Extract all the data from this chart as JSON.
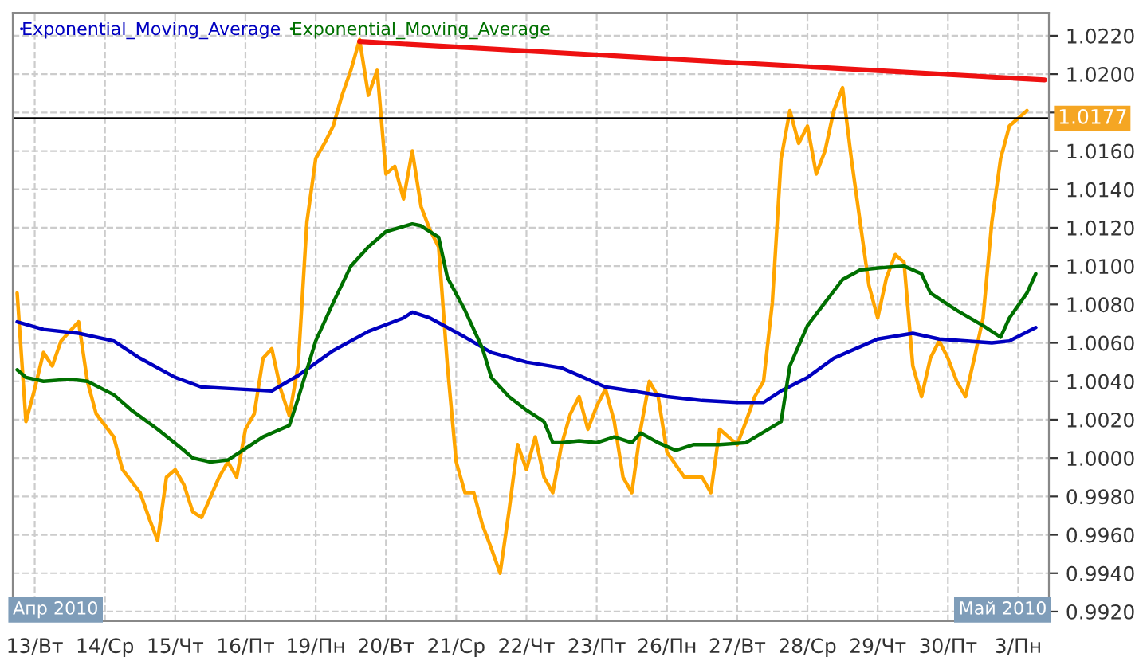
{
  "chart_data": {
    "type": "line",
    "categories": [
      null,
      null,
      "13/Вт",
      null,
      null,
      null,
      null,
      null,
      null,
      null,
      "14/Ср",
      null,
      null,
      null,
      null,
      null,
      null,
      null,
      "15/Чт",
      null,
      null,
      null,
      null,
      null,
      null,
      null,
      "16/Пт",
      null,
      null,
      null,
      null,
      null,
      null,
      null,
      "19/Пн",
      null,
      null,
      null,
      null,
      null,
      null,
      null,
      "20/Вт",
      null,
      null,
      null,
      null,
      null,
      null,
      null,
      "21/Ср",
      null,
      null,
      null,
      null,
      null,
      null,
      null,
      "22/Чт",
      null,
      null,
      null,
      null,
      null,
      null,
      null,
      "23/Пт",
      null,
      null,
      null,
      null,
      null,
      null,
      null,
      "26/Пн",
      null,
      null,
      null,
      null,
      null,
      null,
      null,
      "27/Вт",
      null,
      null,
      null,
      null,
      null,
      null,
      null,
      "28/Ср",
      null,
      null,
      null,
      null,
      null,
      null,
      null,
      "29/Чт",
      null,
      null,
      null,
      null,
      null,
      null,
      null,
      "30/Пт",
      null,
      null,
      null,
      null,
      null,
      null,
      null,
      "3/Пн",
      null,
      null,
      null
    ],
    "ylim": [
      0.9915,
      1.0232
    ],
    "yticks": [
      {
        "value": 0.992,
        "label": "0.9920"
      },
      {
        "value": 0.994,
        "label": "0.9940"
      },
      {
        "value": 0.996,
        "label": "0.9960"
      },
      {
        "value": 0.998,
        "label": "0.9980"
      },
      {
        "value": 1.0,
        "label": "1.0000"
      },
      {
        "value": 1.002,
        "label": "1.0020"
      },
      {
        "value": 1.004,
        "label": "1.0040"
      },
      {
        "value": 1.006,
        "label": "1.0060"
      },
      {
        "value": 1.008,
        "label": "1.0080"
      },
      {
        "value": 1.01,
        "label": "1.0100"
      },
      {
        "value": 1.012,
        "label": "1.0120"
      },
      {
        "value": 1.014,
        "label": "1.0140"
      },
      {
        "value": 1.016,
        "label": "1.0160"
      },
      {
        "value": 1.018,
        "label": null
      },
      {
        "value": 1.02,
        "label": "1.0200"
      },
      {
        "value": 1.022,
        "label": "1.0220"
      }
    ],
    "grid": true,
    "legend": "top left",
    "line_style": "solid",
    "ref_lines": [
      {
        "axis": "y",
        "value": 1.0177,
        "label": "1.0177",
        "color": "#000000"
      }
    ],
    "annotations": [
      "Апр 2010",
      "Май 2010"
    ],
    "series": [
      {
        "color": "#ffa500",
        "values": [
          1.0086,
          1.0019,
          1.0036,
          1.0055,
          1.0048,
          1.0061,
          1.0066,
          1.0071,
          1.004,
          1.0023,
          null,
          1.0011,
          0.9994,
          null,
          0.9982,
          0.9969,
          0.9957,
          0.999,
          0.9994,
          0.9986,
          0.9972,
          0.9969,
          null,
          0.999,
          0.9998,
          0.999,
          1.0015,
          1.0023,
          1.0052,
          1.0057,
          1.0036,
          1.0022,
          1.0048,
          1.0123,
          1.0156,
          1.0164,
          1.0173,
          1.0189,
          1.0202,
          1.0218,
          1.0189,
          1.0202,
          1.0148,
          1.0152,
          1.0135,
          1.016,
          1.0131,
          1.0119,
          1.011,
          1.0048,
          0.9998,
          0.9982,
          0.9982,
          0.9965,
          0.9953,
          0.994,
          0.9972,
          1.0007,
          0.9994,
          1.0011,
          0.999,
          0.9982,
          1.0007,
          1.0023,
          1.0032,
          1.0015,
          1.0027,
          1.0036,
          1.0019,
          0.999,
          0.9982,
          1.0015,
          1.004,
          1.0032,
          1.0003,
          null,
          0.999,
          null,
          0.999,
          0.9982,
          1.0015,
          1.0011,
          1.0007,
          1.0019,
          1.0032,
          1.004,
          1.0081,
          1.0156,
          1.0181,
          1.0164,
          1.0173,
          1.0148,
          1.016,
          1.0181,
          1.0193,
          1.0156,
          1.0123,
          1.009,
          1.0073,
          1.0094,
          1.0106,
          1.0102,
          1.0048,
          1.0032,
          1.0052,
          1.0061,
          1.0052,
          1.004,
          1.0032,
          1.0052,
          1.0073,
          1.0123,
          1.0156,
          1.0173,
          1.0177,
          1.0181,
          null,
          null
        ]
      },
      {
        "name": "Exponential_Moving_Average",
        "color": "#0000c0",
        "values": [
          1.0071,
          null,
          null,
          1.0067,
          null,
          null,
          null,
          1.0065,
          null,
          null,
          null,
          1.0061,
          null,
          null,
          1.0052,
          null,
          null,
          null,
          1.0042,
          null,
          null,
          1.0037,
          null,
          null,
          null,
          1.0036,
          null,
          null,
          null,
          1.0035,
          null,
          null,
          1.0043,
          null,
          null,
          null,
          1.0056,
          null,
          null,
          null,
          1.0066,
          null,
          null,
          null,
          1.0073,
          1.0076,
          null,
          1.0073,
          null,
          null,
          null,
          1.0063,
          null,
          null,
          1.0055,
          null,
          null,
          null,
          1.005,
          null,
          null,
          null,
          1.0047,
          null,
          null,
          null,
          null,
          1.0037,
          null,
          null,
          1.0035,
          null,
          null,
          null,
          1.0032,
          null,
          null,
          null,
          1.003,
          null,
          null,
          null,
          1.0029,
          null,
          null,
          1.0029,
          null,
          1.0035,
          null,
          null,
          1.0042,
          null,
          null,
          1.0052,
          null,
          null,
          1.0058,
          null,
          1.0062,
          null,
          null,
          null,
          1.0065,
          null,
          null,
          1.0062,
          null,
          null,
          null,
          null,
          null,
          1.006,
          null,
          1.0061,
          null,
          null,
          1.0068,
          null
        ]
      },
      {
        "name": "Exponential_Moving_Average",
        "color": "#007000",
        "values": [
          1.0046,
          1.0042,
          null,
          1.004,
          null,
          null,
          1.0041,
          null,
          1.004,
          null,
          null,
          1.0033,
          null,
          1.0025,
          null,
          null,
          1.0015,
          null,
          null,
          1.0004,
          1.0,
          null,
          0.9998,
          null,
          0.9999,
          null,
          1.0005,
          null,
          1.0011,
          1.0013,
          null,
          1.0017,
          1.0031,
          null,
          1.0061,
          null,
          1.0081,
          null,
          1.01,
          null,
          1.011,
          null,
          1.0118,
          null,
          null,
          1.0122,
          1.0121,
          null,
          1.0115,
          1.0094,
          null,
          1.0077,
          null,
          1.0057,
          1.0042,
          null,
          1.0032,
          null,
          1.0025,
          null,
          1.0019,
          1.0008,
          1.0008,
          null,
          1.0009,
          null,
          1.0008,
          null,
          1.0011,
          null,
          1.0008,
          1.0013,
          null,
          1.0008,
          null,
          1.0004,
          null,
          1.0007,
          null,
          null,
          1.0007,
          null,
          null,
          1.0008,
          null,
          null,
          null,
          1.0019,
          1.0048,
          null,
          1.0069,
          null,
          1.0081,
          null,
          1.0093,
          null,
          1.0098,
          null,
          1.0099,
          null,
          null,
          1.01,
          null,
          1.0096,
          1.0086,
          null,
          null,
          1.0077,
          null,
          null,
          1.0069,
          null,
          1.0063,
          1.0073,
          null,
          1.0086,
          1.0096,
          null
        ]
      },
      {
        "color": "#ee1111",
        "values": [
          null,
          null,
          null,
          null,
          null,
          null,
          null,
          null,
          null,
          null,
          null,
          null,
          null,
          null,
          null,
          null,
          null,
          null,
          null,
          null,
          null,
          null,
          null,
          null,
          null,
          null,
          null,
          null,
          null,
          null,
          null,
          null,
          null,
          null,
          null,
          null,
          null,
          null,
          null,
          1.0217,
          null,
          null,
          null,
          null,
          null,
          null,
          null,
          null,
          null,
          null,
          null,
          null,
          null,
          null,
          null,
          null,
          null,
          null,
          null,
          null,
          null,
          null,
          null,
          null,
          null,
          null,
          null,
          null,
          null,
          null,
          null,
          null,
          null,
          null,
          null,
          null,
          null,
          null,
          null,
          null,
          null,
          null,
          null,
          null,
          null,
          null,
          null,
          null,
          null,
          null,
          null,
          null,
          null,
          null,
          null,
          null,
          null,
          null,
          null,
          null,
          null,
          null,
          null,
          null,
          null,
          null,
          null,
          null,
          null,
          null,
          null,
          null,
          null,
          null,
          null,
          null,
          null,
          1.0197
        ]
      }
    ]
  }
}
